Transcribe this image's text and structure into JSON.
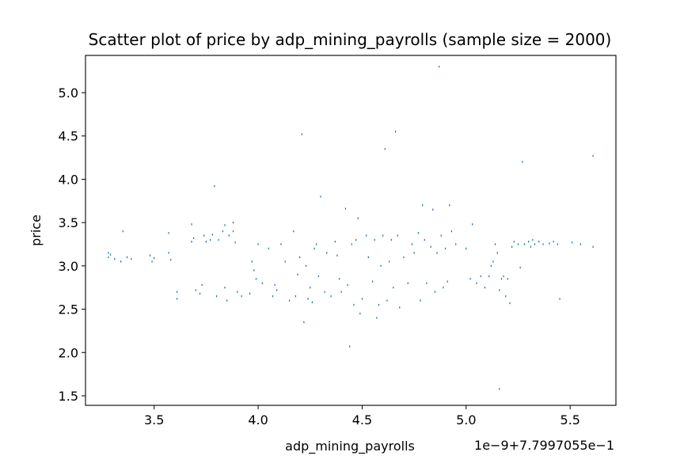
{
  "chart_data": {
    "type": "scatter",
    "title": "Scatter plot of price by adp_mining_payrolls (sample size = 2000)",
    "xlabel": "adp_mining_payrolls",
    "ylabel": "price",
    "x_offset_label": "1e−9+7.7997055e−1",
    "x_ticks": [
      {
        "value": 3.5,
        "label": "3.5"
      },
      {
        "value": 4.0,
        "label": "4.0"
      },
      {
        "value": 4.5,
        "label": "4.5"
      },
      {
        "value": 5.0,
        "label": "5.0"
      },
      {
        "value": 5.5,
        "label": "5.5"
      }
    ],
    "y_ticks": [
      {
        "value": 1.5,
        "label": "1.5"
      },
      {
        "value": 2.0,
        "label": "2.0"
      },
      {
        "value": 2.5,
        "label": "2.5"
      },
      {
        "value": 3.0,
        "label": "3.0"
      },
      {
        "value": 3.5,
        "label": "3.5"
      },
      {
        "value": 4.0,
        "label": "4.0"
      },
      {
        "value": 4.5,
        "label": "4.5"
      },
      {
        "value": 5.0,
        "label": "5.0"
      }
    ],
    "xlim": [
      3.17,
      5.72
    ],
    "ylim": [
      1.39,
      5.43
    ],
    "grid": false,
    "marker_color": "#1f77b4",
    "series": [
      {
        "points": [
          [
            3.28,
            3.15
          ],
          [
            3.28,
            3.1
          ],
          [
            3.29,
            3.13
          ],
          [
            3.31,
            3.08
          ],
          [
            3.34,
            3.05
          ],
          [
            3.35,
            3.4
          ],
          [
            3.37,
            3.1
          ],
          [
            3.39,
            3.08
          ],
          [
            3.48,
            3.12
          ],
          [
            3.49,
            3.05
          ],
          [
            3.5,
            3.09
          ],
          [
            3.57,
            3.38
          ],
          [
            3.57,
            3.15
          ],
          [
            3.58,
            3.07
          ],
          [
            3.61,
            2.7
          ],
          [
            3.61,
            2.62
          ],
          [
            3.68,
            3.48
          ],
          [
            3.68,
            3.28
          ],
          [
            3.69,
            3.32
          ],
          [
            3.7,
            2.72
          ],
          [
            3.72,
            2.68
          ],
          [
            3.73,
            2.78
          ],
          [
            3.74,
            3.35
          ],
          [
            3.75,
            3.28
          ],
          [
            3.77,
            3.3
          ],
          [
            3.78,
            3.36
          ],
          [
            3.79,
            3.92
          ],
          [
            3.8,
            2.65
          ],
          [
            3.81,
            3.3
          ],
          [
            3.83,
            3.4
          ],
          [
            3.84,
            3.47
          ],
          [
            3.84,
            2.75
          ],
          [
            3.85,
            2.6
          ],
          [
            3.86,
            3.35
          ],
          [
            3.88,
            3.4
          ],
          [
            3.88,
            3.5
          ],
          [
            3.89,
            3.27
          ],
          [
            3.9,
            2.7
          ],
          [
            3.92,
            2.65
          ],
          [
            3.96,
            2.68
          ],
          [
            3.97,
            3.05
          ],
          [
            3.98,
            2.95
          ],
          [
            3.99,
            2.85
          ],
          [
            4.0,
            3.25
          ],
          [
            4.02,
            2.8
          ],
          [
            4.05,
            3.2
          ],
          [
            4.07,
            2.65
          ],
          [
            4.08,
            2.78
          ],
          [
            4.09,
            2.72
          ],
          [
            4.11,
            3.25
          ],
          [
            4.13,
            3.05
          ],
          [
            4.15,
            2.6
          ],
          [
            4.17,
            3.4
          ],
          [
            4.18,
            2.65
          ],
          [
            4.19,
            2.9
          ],
          [
            4.2,
            3.1
          ],
          [
            4.21,
            4.52
          ],
          [
            4.22,
            2.35
          ],
          [
            4.23,
            3.0
          ],
          [
            4.24,
            2.62
          ],
          [
            4.25,
            2.75
          ],
          [
            4.26,
            2.58
          ],
          [
            4.27,
            3.2
          ],
          [
            4.28,
            3.25
          ],
          [
            4.29,
            2.88
          ],
          [
            4.3,
            3.8
          ],
          [
            4.32,
            2.7
          ],
          [
            4.33,
            3.15
          ],
          [
            4.35,
            2.65
          ],
          [
            4.37,
            3.28
          ],
          [
            4.38,
            3.12
          ],
          [
            4.39,
            2.85
          ],
          [
            4.4,
            2.7
          ],
          [
            4.42,
            3.66
          ],
          [
            4.43,
            2.78
          ],
          [
            4.44,
            2.07
          ],
          [
            4.45,
            3.25
          ],
          [
            4.46,
            2.55
          ],
          [
            4.47,
            3.3
          ],
          [
            4.48,
            3.55
          ],
          [
            4.49,
            2.45
          ],
          [
            4.5,
            2.62
          ],
          [
            4.52,
            3.35
          ],
          [
            4.53,
            3.1
          ],
          [
            4.55,
            2.82
          ],
          [
            4.56,
            3.3
          ],
          [
            4.57,
            2.4
          ],
          [
            4.58,
            2.55
          ],
          [
            4.59,
            3.0
          ],
          [
            4.6,
            3.35
          ],
          [
            4.61,
            4.35
          ],
          [
            4.62,
            2.6
          ],
          [
            4.63,
            3.05
          ],
          [
            4.64,
            3.3
          ],
          [
            4.65,
            2.75
          ],
          [
            4.66,
            4.55
          ],
          [
            4.67,
            3.35
          ],
          [
            4.68,
            2.52
          ],
          [
            4.7,
            3.1
          ],
          [
            4.72,
            2.8
          ],
          [
            4.74,
            3.25
          ],
          [
            4.75,
            3.15
          ],
          [
            4.77,
            3.38
          ],
          [
            4.78,
            2.6
          ],
          [
            4.79,
            3.7
          ],
          [
            4.8,
            3.3
          ],
          [
            4.81,
            2.8
          ],
          [
            4.83,
            3.22
          ],
          [
            4.84,
            3.65
          ],
          [
            4.85,
            2.7
          ],
          [
            4.86,
            3.15
          ],
          [
            4.87,
            5.3
          ],
          [
            4.88,
            3.35
          ],
          [
            4.89,
            2.75
          ],
          [
            4.9,
            3.2
          ],
          [
            4.91,
            2.82
          ],
          [
            4.92,
            3.7
          ],
          [
            4.93,
            3.4
          ],
          [
            4.95,
            3.25
          ],
          [
            5.0,
            3.2
          ],
          [
            5.02,
            2.85
          ],
          [
            5.03,
            3.48
          ],
          [
            5.05,
            2.8
          ],
          [
            5.07,
            2.88
          ],
          [
            5.09,
            2.75
          ],
          [
            5.11,
            2.88
          ],
          [
            5.12,
            3.0
          ],
          [
            5.13,
            3.05
          ],
          [
            5.14,
            3.25
          ],
          [
            5.15,
            3.15
          ],
          [
            5.16,
            1.58
          ],
          [
            5.16,
            2.72
          ],
          [
            5.17,
            2.85
          ],
          [
            5.18,
            2.88
          ],
          [
            5.19,
            2.65
          ],
          [
            5.2,
            2.85
          ],
          [
            5.21,
            2.57
          ],
          [
            5.22,
            3.22
          ],
          [
            5.23,
            3.28
          ],
          [
            5.25,
            3.25
          ],
          [
            5.26,
            2.98
          ],
          [
            5.27,
            4.2
          ],
          [
            5.28,
            3.25
          ],
          [
            5.3,
            3.28
          ],
          [
            5.31,
            3.22
          ],
          [
            5.32,
            3.3
          ],
          [
            5.33,
            3.25
          ],
          [
            5.35,
            3.28
          ],
          [
            5.37,
            3.25
          ],
          [
            5.4,
            3.26
          ],
          [
            5.42,
            3.28
          ],
          [
            5.44,
            3.25
          ],
          [
            5.45,
            2.62
          ],
          [
            5.51,
            3.27
          ],
          [
            5.55,
            3.25
          ],
          [
            5.61,
            4.27
          ],
          [
            5.61,
            3.22
          ]
        ]
      }
    ]
  }
}
